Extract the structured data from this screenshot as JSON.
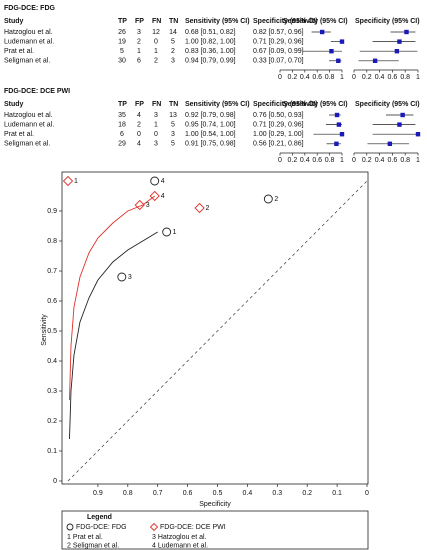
{
  "chart_data": [
    {
      "type": "forest",
      "title": "FDG-DCE: FDG",
      "columns": [
        "Study",
        "TP",
        "FP",
        "FN",
        "TN",
        "Sensitivity (95% CI)",
        "Specificity (95% CI)",
        "Sensitivity (95% CI)",
        "Specificity (95% CI)"
      ],
      "studies": [
        "Hatzoglou et al.",
        "Ludemann et al.",
        "Prat et al.",
        "Seligman et al."
      ],
      "counts": [
        [
          26,
          3,
          12,
          14
        ],
        [
          19,
          2,
          0,
          5
        ],
        [
          5,
          1,
          1,
          2
        ],
        [
          30,
          6,
          2,
          3
        ]
      ],
      "sensitivity": {
        "values": [
          0.68,
          1.0,
          0.83,
          0.94
        ],
        "lower": [
          0.51,
          0.82,
          0.36,
          0.79
        ],
        "upper": [
          0.82,
          1.0,
          1.0,
          0.99
        ],
        "value_labels": [
          "0.68 [0.51, 0.82]",
          "1.00 [0.82, 1.00]",
          "0.83 [0.36, 1.00]",
          "0.94 [0.79, 0.99]"
        ]
      },
      "specificity": {
        "values": [
          0.82,
          0.71,
          0.67,
          0.33
        ],
        "lower": [
          0.57,
          0.29,
          0.09,
          0.07
        ],
        "upper": [
          0.96,
          0.96,
          0.99,
          0.7
        ],
        "value_labels": [
          "0.82 [0.57, 0.96]",
          "0.71 [0.29, 0.96]",
          "0.67 [0.09, 0.99]",
          "0.33 [0.07, 0.70]"
        ]
      },
      "xlim": [
        0,
        1
      ],
      "xticks": [
        0,
        0.2,
        0.4,
        0.6,
        0.8,
        1
      ],
      "color": "#1a1ab8"
    },
    {
      "type": "forest",
      "title": "FDG-DCE: DCE PWI",
      "columns": [
        "Study",
        "TP",
        "FP",
        "FN",
        "TN",
        "Sensitivity (95% CI)",
        "Specificity (95% CI)",
        "Sensitivity (95% CI)",
        "Specificity (95% CI)"
      ],
      "studies": [
        "Hatzoglou et al.",
        "Ludemann et al.",
        "Prat et al.",
        "Seligman et al."
      ],
      "counts": [
        [
          35,
          4,
          3,
          13
        ],
        [
          18,
          2,
          1,
          5
        ],
        [
          6,
          0,
          0,
          3
        ],
        [
          29,
          4,
          3,
          5
        ]
      ],
      "sensitivity": {
        "values": [
          0.92,
          0.95,
          1.0,
          0.91
        ],
        "lower": [
          0.79,
          0.74,
          0.54,
          0.75
        ],
        "upper": [
          0.98,
          1.0,
          1.0,
          0.98
        ],
        "value_labels": [
          "0.92 [0.79, 0.98]",
          "0.95 [0.74, 1.00]",
          "1.00 [0.54, 1.00]",
          "0.91 [0.75, 0.98]"
        ]
      },
      "specificity": {
        "values": [
          0.76,
          0.71,
          1.0,
          0.56
        ],
        "lower": [
          0.5,
          0.29,
          0.29,
          0.21
        ],
        "upper": [
          0.93,
          0.96,
          1.0,
          0.86
        ],
        "value_labels": [
          "0.76 [0.50, 0.93]",
          "0.71 [0.29, 0.96]",
          "1.00 [0.29, 1.00]",
          "0.56 [0.21, 0.86]"
        ]
      },
      "xlim": [
        0,
        1
      ],
      "xticks": [
        0,
        0.2,
        0.4,
        0.6,
        0.8,
        1
      ],
      "color": "#1a1ab8"
    },
    {
      "type": "sroc",
      "xlabel": "Specificity",
      "ylabel": "Sensitivity",
      "xlim": [
        1,
        0
      ],
      "xticks": [
        0.9,
        0.8,
        0.7,
        0.6,
        0.5,
        0.4,
        0.3,
        0.2,
        0.1,
        0
      ],
      "ylim": [
        0,
        1
      ],
      "yticks": [
        0,
        0.1,
        0.2,
        0.3,
        0.4,
        0.5,
        0.6,
        0.7,
        0.8,
        0.9
      ],
      "series": [
        {
          "name": "FDG-DCE: FDG",
          "color": "#222222",
          "marker": "circle",
          "x": [
            0.67,
            0.33,
            0.82,
            0.71
          ],
          "y": [
            0.83,
            0.94,
            0.68,
            1.0
          ],
          "point_labels": [
            "1",
            "2",
            "3",
            "4"
          ],
          "curve": {
            "x": [
              0.995,
              0.99,
              0.98,
              0.96,
              0.93,
              0.9,
              0.85,
              0.8,
              0.75,
              0.7
            ],
            "y": [
              0.14,
              0.3,
              0.42,
              0.53,
              0.61,
              0.67,
              0.73,
              0.77,
              0.8,
              0.83
            ]
          }
        },
        {
          "name": "FDG-DCE: DCE PWI",
          "color": "#e0302a",
          "marker": "diamond",
          "x": [
            1.0,
            0.56,
            0.76,
            0.71
          ],
          "y": [
            1.0,
            0.91,
            0.92,
            0.95
          ],
          "point_labels": [
            "1",
            "2",
            "3",
            "4"
          ],
          "curve": {
            "x": [
              0.995,
              0.99,
              0.98,
              0.96,
              0.93,
              0.9,
              0.85,
              0.8,
              0.75,
              0.71
            ],
            "y": [
              0.27,
              0.45,
              0.58,
              0.68,
              0.76,
              0.81,
              0.86,
              0.9,
              0.92,
              0.95
            ]
          }
        }
      ],
      "legend_title": "Legend",
      "legend_keys": [
        "1 Prat et al.",
        "2 Seligman et al.",
        "3 Hatzoglou et al.",
        "4 Ludemann et al."
      ]
    }
  ]
}
